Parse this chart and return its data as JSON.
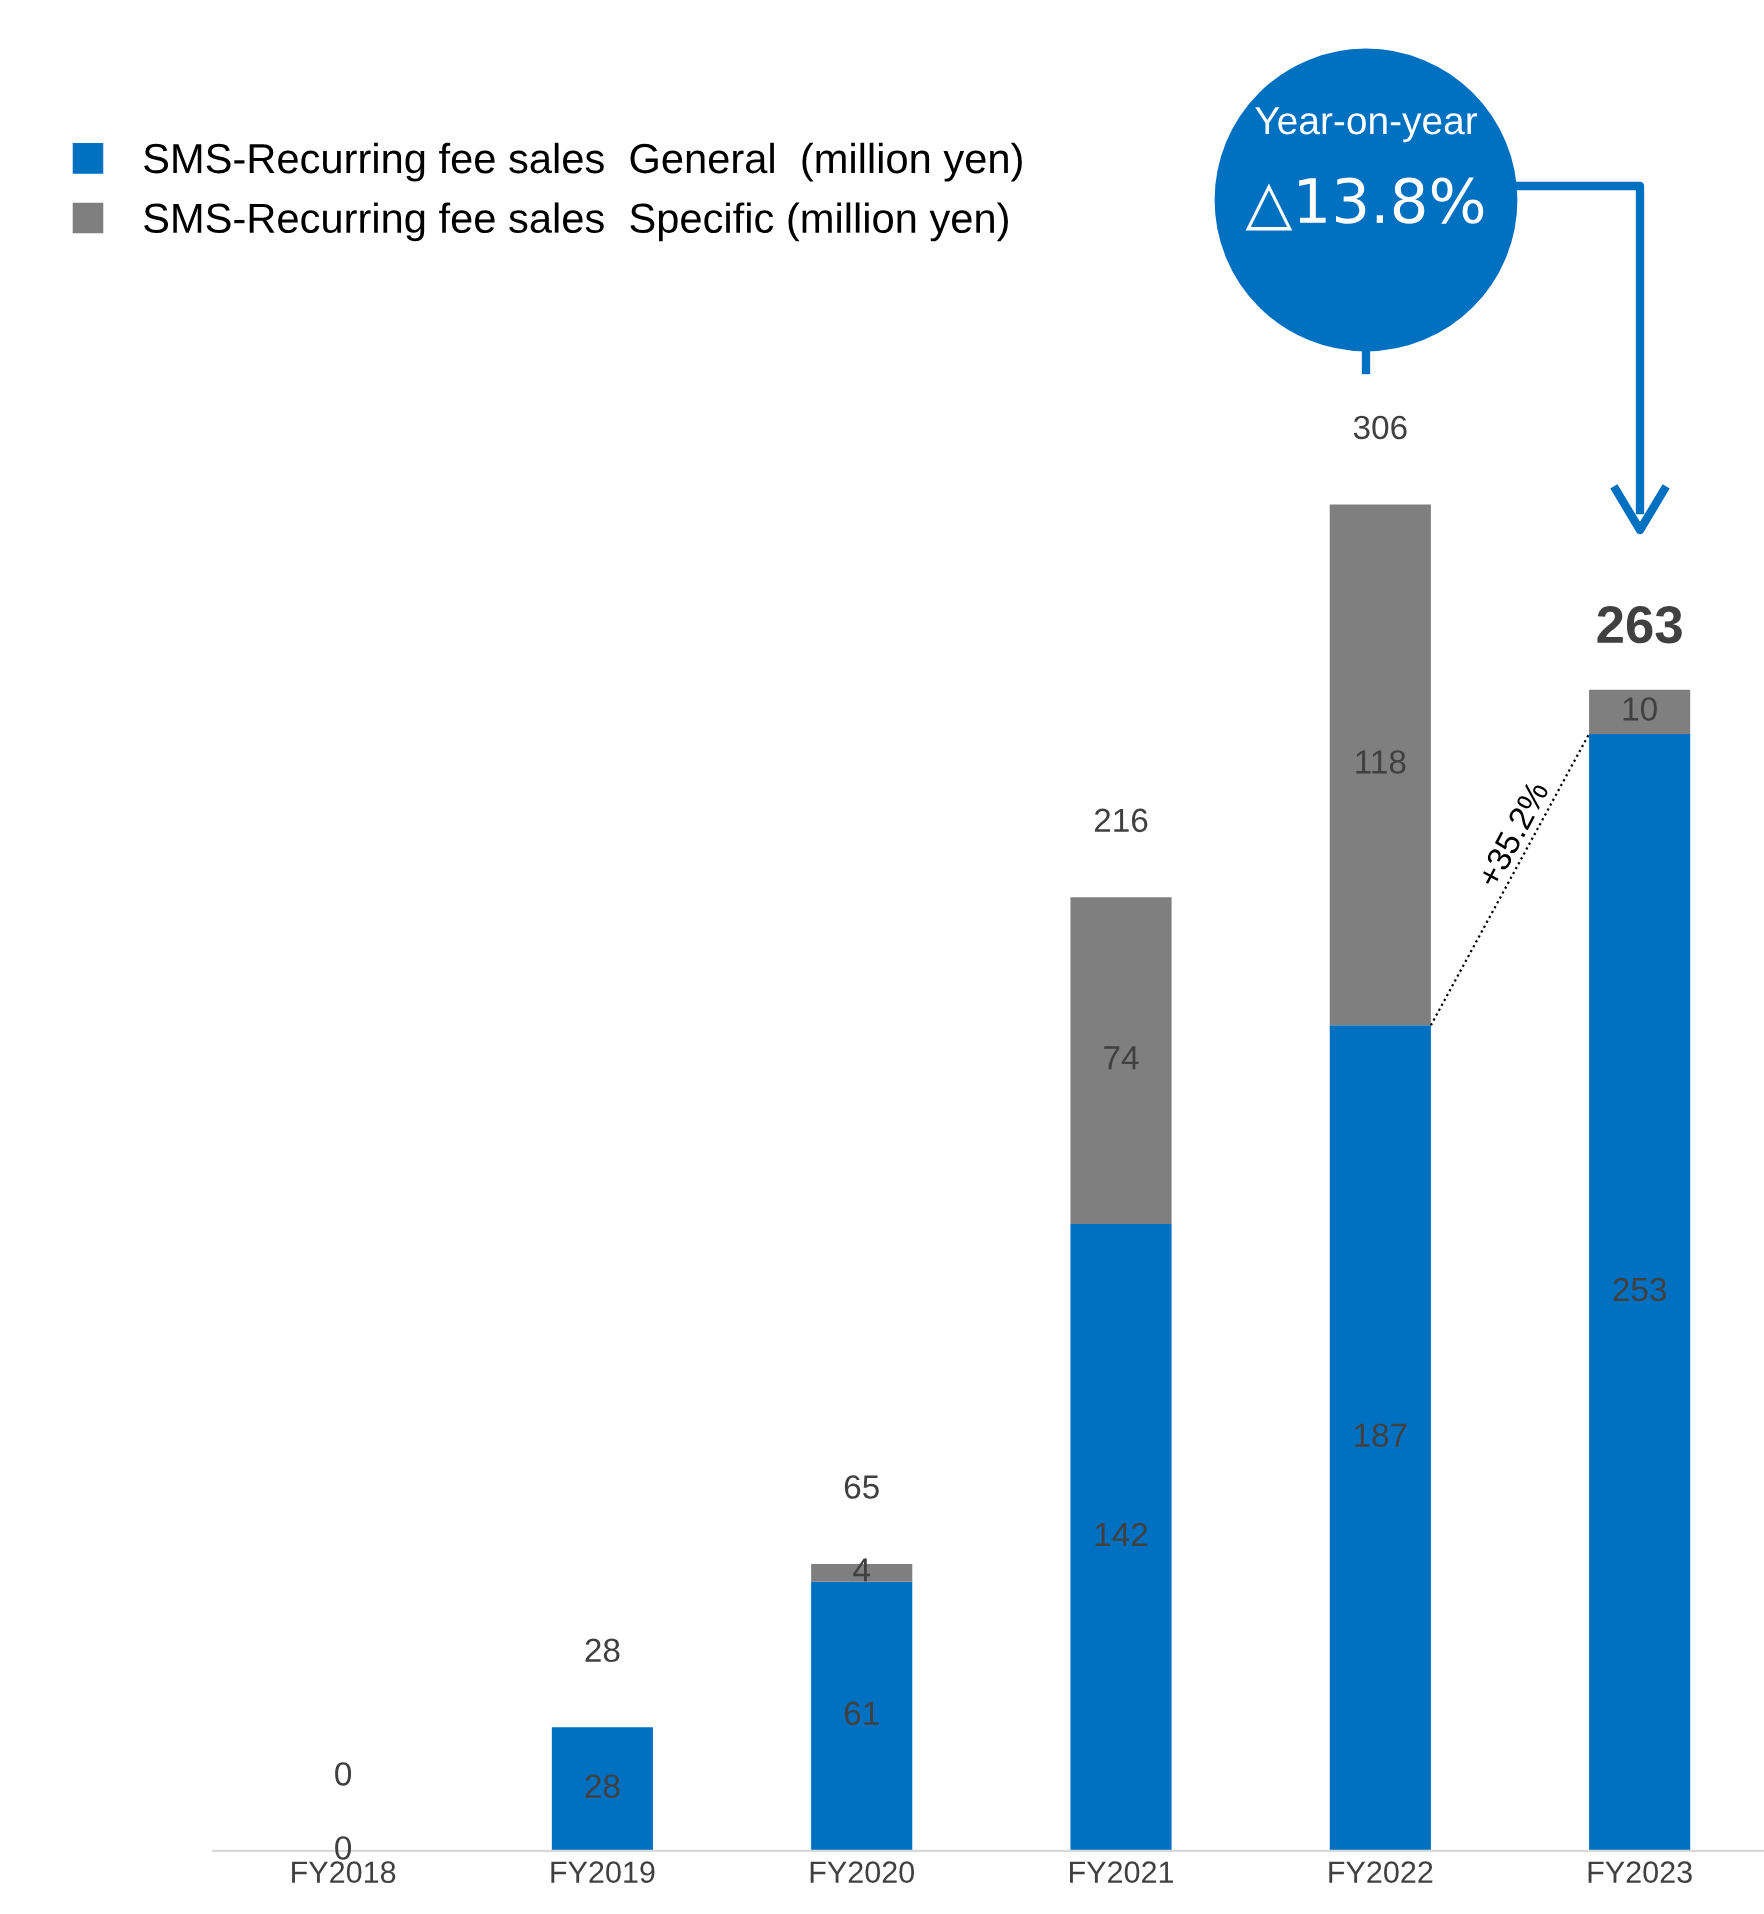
{
  "chart_data": {
    "type": "bar",
    "stacked": true,
    "categories": [
      "FY2018",
      "FY2019",
      "FY2020",
      "FY2021",
      "FY2022",
      "FY2023"
    ],
    "series": [
      {
        "name": "SMS-Recurring fee sales  General  (million yen)",
        "color": "#0070c0",
        "values": [
          0,
          28,
          61,
          142,
          187,
          253
        ],
        "value_labels": [
          "0",
          "28",
          "61",
          "142",
          "187",
          "253"
        ]
      },
      {
        "name": "SMS-Recurring fee sales  Specific (million yen)",
        "color": "#7f7f7f",
        "values": [
          0,
          0,
          4,
          74,
          118,
          10
        ],
        "value_labels": [
          null,
          null,
          "4",
          "74",
          "118",
          "10"
        ]
      }
    ],
    "totals": [
      "0",
      "28",
      "65",
      "216",
      "306",
      "263"
    ],
    "legend": "top left",
    "grid": false,
    "annotations": [
      "Year-on-year",
      "△13.8%",
      "+35.2%"
    ]
  }
}
